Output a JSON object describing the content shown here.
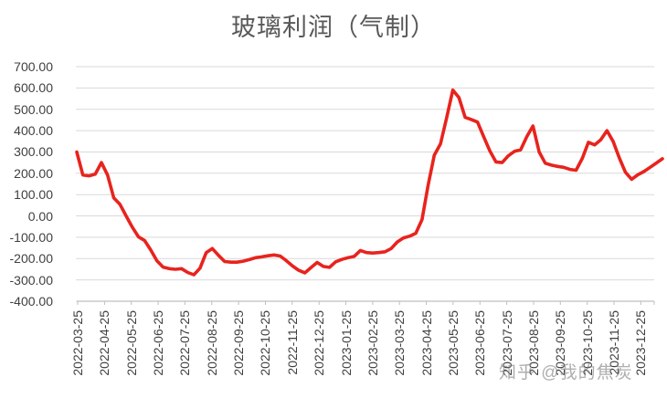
{
  "page": {
    "title": "玻璃利润（气制）",
    "watermark": "知乎 @我的焦炭"
  },
  "chart_data": {
    "type": "line",
    "title": "玻璃利润（气制）",
    "legend": false,
    "grid": "horizontal",
    "line_color": "#e8231d",
    "gridline_color": "#d9d9d9",
    "axis_color": "#bfbfbf",
    "label_color": "#3f3f3f",
    "title_color": "#595959",
    "ylim": [
      -400,
      700
    ],
    "y_tick_step": 100,
    "y_tick_labels": [
      "700.00",
      "600.00",
      "500.00",
      "400.00",
      "300.00",
      "200.00",
      "100.00",
      "0.00",
      "-100.00",
      "-200.00",
      "-300.00",
      "-400.00"
    ],
    "x_tick_labels": [
      "2022-03-25",
      "2022-04-25",
      "2022-05-25",
      "2022-06-25",
      "2022-07-25",
      "2022-08-25",
      "2022-09-25",
      "2022-10-25",
      "2022-11-25",
      "2022-12-25",
      "2023-01-25",
      "2023-02-25",
      "2023-03-25",
      "2023-04-25",
      "2023-05-25",
      "2023-06-25",
      "2023-07-25",
      "2023-08-25",
      "2023-09-25",
      "2023-10-25",
      "2023-11-25",
      "2023-12-25"
    ],
    "sampling": "weekly (approx., read from plot)",
    "dates": [
      "2022-03-25",
      "2022-04-01",
      "2022-04-08",
      "2022-04-15",
      "2022-04-22",
      "2022-04-29",
      "2022-05-06",
      "2022-05-13",
      "2022-05-20",
      "2022-05-27",
      "2022-06-03",
      "2022-06-10",
      "2022-06-17",
      "2022-06-24",
      "2022-07-01",
      "2022-07-08",
      "2022-07-15",
      "2022-07-22",
      "2022-07-29",
      "2022-08-05",
      "2022-08-12",
      "2022-08-19",
      "2022-08-26",
      "2022-09-02",
      "2022-09-09",
      "2022-09-16",
      "2022-09-23",
      "2022-09-30",
      "2022-10-07",
      "2022-10-14",
      "2022-10-21",
      "2022-10-28",
      "2022-11-04",
      "2022-11-11",
      "2022-11-18",
      "2022-11-25",
      "2022-12-02",
      "2022-12-09",
      "2022-12-16",
      "2022-12-23",
      "2022-12-30",
      "2023-01-06",
      "2023-01-13",
      "2023-01-20",
      "2023-01-27",
      "2023-02-03",
      "2023-02-10",
      "2023-02-17",
      "2023-02-24",
      "2023-03-03",
      "2023-03-10",
      "2023-03-17",
      "2023-03-24",
      "2023-03-31",
      "2023-04-07",
      "2023-04-14",
      "2023-04-21",
      "2023-04-28",
      "2023-05-05",
      "2023-05-12",
      "2023-05-19",
      "2023-05-26",
      "2023-06-02",
      "2023-06-09",
      "2023-06-16",
      "2023-06-23",
      "2023-06-30",
      "2023-07-07",
      "2023-07-14",
      "2023-07-21",
      "2023-07-28",
      "2023-08-04",
      "2023-08-11",
      "2023-08-18",
      "2023-08-25",
      "2023-09-01",
      "2023-09-08",
      "2023-09-15",
      "2023-09-22",
      "2023-09-29",
      "2023-10-06",
      "2023-10-13",
      "2023-10-20",
      "2023-10-27",
      "2023-11-03",
      "2023-11-10",
      "2023-11-17",
      "2023-11-24",
      "2023-12-01",
      "2023-12-08",
      "2023-12-15",
      "2023-12-22",
      "2023-12-29",
      "2024-01-05",
      "2024-01-12",
      "2024-01-19"
    ],
    "values": [
      300,
      192,
      188,
      196,
      250,
      192,
      85,
      55,
      0,
      -52,
      -98,
      -115,
      -160,
      -210,
      -240,
      -247,
      -250,
      -247,
      -265,
      -276,
      -245,
      -172,
      -153,
      -185,
      -214,
      -217,
      -217,
      -212,
      -205,
      -196,
      -192,
      -187,
      -183,
      -188,
      -210,
      -235,
      -255,
      -267,
      -242,
      -218,
      -237,
      -241,
      -215,
      -204,
      -196,
      -190,
      -162,
      -172,
      -174,
      -172,
      -168,
      -153,
      -122,
      -103,
      -95,
      -81,
      -17,
      145,
      285,
      338,
      460,
      590,
      555,
      462,
      452,
      440,
      372,
      305,
      253,
      250,
      282,
      303,
      310,
      372,
      422,
      300,
      247,
      238,
      232,
      228,
      218,
      214,
      270,
      345,
      333,
      357,
      400,
      350,
      272,
      205,
      172,
      193,
      208,
      228,
      248,
      268
    ]
  }
}
